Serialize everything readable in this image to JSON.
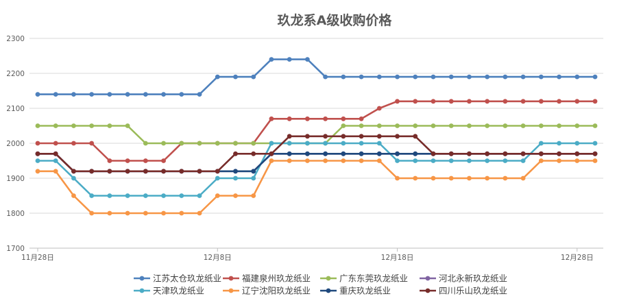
{
  "chart_data": {
    "type": "line",
    "title": "玖龙系A级收购价格",
    "xlabel": "",
    "ylabel": "",
    "ylim": [
      1700,
      2300
    ],
    "yticks": [
      1700,
      1800,
      1900,
      2000,
      2100,
      2200,
      2300
    ],
    "x": [
      "11月28日",
      "11月29日",
      "11月30日",
      "12月1日",
      "12月2日",
      "12月3日",
      "12月4日",
      "12月5日",
      "12月6日",
      "12月7日",
      "12月8日",
      "12月9日",
      "12月10日",
      "12月11日",
      "12月12日",
      "12月13日",
      "12月14日",
      "12月15日",
      "12月16日",
      "12月17日",
      "12月18日",
      "12月19日",
      "12月20日",
      "12月21日",
      "12月22日",
      "12月23日",
      "12月24日",
      "12月25日",
      "12月26日",
      "12月27日",
      "12月28日",
      "12月29日"
    ],
    "xtick_labels": [
      "11月28日",
      "12月8日",
      "12月18日",
      "12月28日"
    ],
    "grid": "horizontal",
    "legend_position": "bottom",
    "series": [
      {
        "name": "江苏太仓玖龙纸业",
        "color": "#4e81bd",
        "values": [
          2140,
          2140,
          2140,
          2140,
          2140,
          2140,
          2140,
          2140,
          2140,
          2140,
          2190,
          2190,
          2190,
          2240,
          2240,
          2240,
          2190,
          2190,
          2190,
          2190,
          2190,
          2190,
          2190,
          2190,
          2190,
          2190,
          2190,
          2190,
          2190,
          2190,
          2190,
          2190
        ]
      },
      {
        "name": "福建泉州玖龙纸业",
        "color": "#c0504d",
        "values": [
          2000,
          2000,
          2000,
          2000,
          1950,
          1950,
          1950,
          1950,
          2000,
          2000,
          2000,
          2000,
          2000,
          2070,
          2070,
          2070,
          2070,
          2070,
          2070,
          2100,
          2120,
          2120,
          2120,
          2120,
          2120,
          2120,
          2120,
          2120,
          2120,
          2120,
          2120,
          2120
        ]
      },
      {
        "name": "广东东莞玖龙纸业",
        "color": "#9bbb59",
        "values": [
          2050,
          2050,
          2050,
          2050,
          2050,
          2050,
          2000,
          2000,
          2000,
          2000,
          2000,
          2000,
          2000,
          2000,
          2000,
          2000,
          2000,
          2050,
          2050,
          2050,
          2050,
          2050,
          2050,
          2050,
          2050,
          2050,
          2050,
          2050,
          2050,
          2050,
          2050,
          2050
        ]
      },
      {
        "name": "河北永新玖龙纸业",
        "color": "#8064a2",
        "values": [
          1970,
          1970,
          1920,
          1920,
          1920,
          1920,
          1920,
          1920,
          1920,
          1920,
          1920,
          1920,
          1920,
          1970,
          1970,
          1970,
          1970,
          1970,
          1970,
          1970,
          1970,
          1970,
          1970,
          1970,
          1970,
          1970,
          1970,
          1970,
          1970,
          1970,
          1970,
          1970
        ]
      },
      {
        "name": "天津玖龙纸业",
        "color": "#4bacc6",
        "values": [
          1950,
          1950,
          1900,
          1850,
          1850,
          1850,
          1850,
          1850,
          1850,
          1850,
          1900,
          1900,
          1900,
          2000,
          2000,
          2000,
          2000,
          2000,
          2000,
          2000,
          1950,
          1950,
          1950,
          1950,
          1950,
          1950,
          1950,
          1950,
          2000,
          2000,
          2000,
          2000
        ]
      },
      {
        "name": "辽宁沈阳玖龙纸业",
        "color": "#f79646",
        "values": [
          1920,
          1920,
          1850,
          1800,
          1800,
          1800,
          1800,
          1800,
          1800,
          1800,
          1850,
          1850,
          1850,
          1950,
          1950,
          1950,
          1950,
          1950,
          1950,
          1950,
          1900,
          1900,
          1900,
          1900,
          1900,
          1900,
          1900,
          1900,
          1950,
          1950,
          1950,
          1950
        ]
      },
      {
        "name": "重庆玖龙纸业",
        "color": "#1f497d",
        "values": [
          1970,
          1970,
          1920,
          1920,
          1920,
          1920,
          1920,
          1920,
          1920,
          1920,
          1920,
          1920,
          1920,
          1970,
          1970,
          1970,
          1970,
          1970,
          1970,
          1970,
          1970,
          1970,
          1970,
          1970,
          1970,
          1970,
          1970,
          1970,
          1970,
          1970,
          1970,
          1970
        ]
      },
      {
        "name": "四川乐山玖龙纸业",
        "color": "#772c2a",
        "values": [
          1970,
          1970,
          1920,
          1920,
          1920,
          1920,
          1920,
          1920,
          1920,
          1920,
          1920,
          1970,
          1970,
          1970,
          2020,
          2020,
          2020,
          2020,
          2020,
          2020,
          2020,
          2020,
          1970,
          1970,
          1970,
          1970,
          1970,
          1970,
          1970,
          1970,
          1970,
          1970
        ]
      }
    ]
  }
}
